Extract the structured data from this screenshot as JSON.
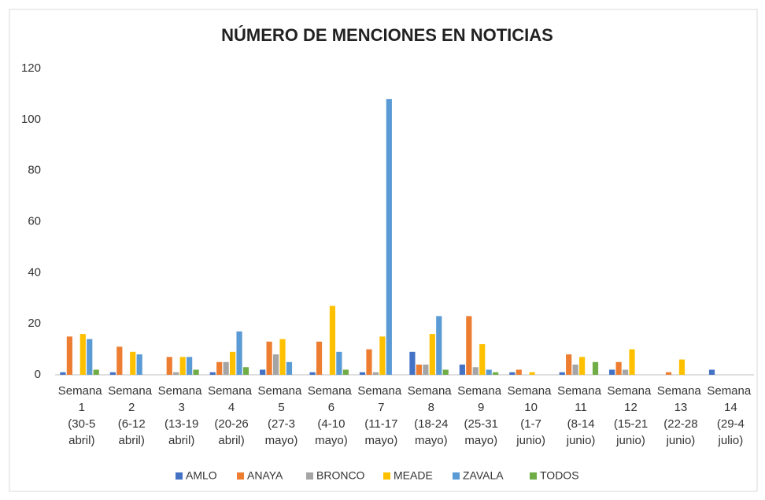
{
  "chart_data": {
    "type": "bar",
    "title": "NÚMERO DE MENCIONES EN NOTICIAS",
    "categories": [
      "Semana\n1\n(30-5\nabril)",
      "Semana\n2\n(6-12\nabril)",
      "Semana\n3\n(13-19\nabril)",
      "Semana\n4\n(20-26\nabril)",
      "Semana\n5\n(27-3\nmayo)",
      "Semana\n6\n(4-10\nmayo)",
      "Semana\n7\n(11-17\nmayo)",
      "Semana\n8\n(18-24\nmayo)",
      "Semana\n9\n(25-31\nmayo)",
      "Semana\n10\n(1-7\njunio)",
      "Semana\n11\n(8-14\njunio)",
      "Semana\n12\n(15-21\njunio)",
      "Semana\n13\n(22-28\njunio)",
      "Semana\n14\n(29-4\njulio)"
    ],
    "series": [
      {
        "name": "AMLO",
        "color": "#4472c4",
        "values": [
          1,
          1,
          0,
          1,
          2,
          1,
          1,
          9,
          4,
          1,
          1,
          2,
          0,
          2
        ]
      },
      {
        "name": "ANAYA",
        "color": "#ed7d31",
        "values": [
          15,
          11,
          7,
          5,
          13,
          13,
          10,
          4,
          23,
          2,
          8,
          5,
          1,
          0
        ]
      },
      {
        "name": "BRONCO",
        "color": "#a5a5a5",
        "values": [
          0,
          0,
          1,
          5,
          8,
          0,
          1,
          4,
          3,
          0,
          4,
          2,
          0,
          0
        ]
      },
      {
        "name": "MEADE",
        "color": "#ffc000",
        "values": [
          16,
          9,
          7,
          9,
          14,
          27,
          15,
          16,
          12,
          1,
          7,
          10,
          6,
          0
        ]
      },
      {
        "name": "ZAVALA",
        "color": "#5b9bd5",
        "values": [
          14,
          8,
          7,
          17,
          5,
          9,
          108,
          23,
          2,
          0,
          0,
          0,
          0,
          0
        ]
      },
      {
        "name": "TODOS",
        "color": "#70ad47",
        "values": [
          2,
          0,
          2,
          3,
          0,
          2,
          0,
          2,
          1,
          0,
          5,
          0,
          0,
          0
        ]
      }
    ],
    "ylim": [
      0,
      120
    ],
    "yticks": [
      0,
      20,
      40,
      60,
      80,
      100,
      120
    ],
    "grid": false,
    "legend": "bottom"
  }
}
